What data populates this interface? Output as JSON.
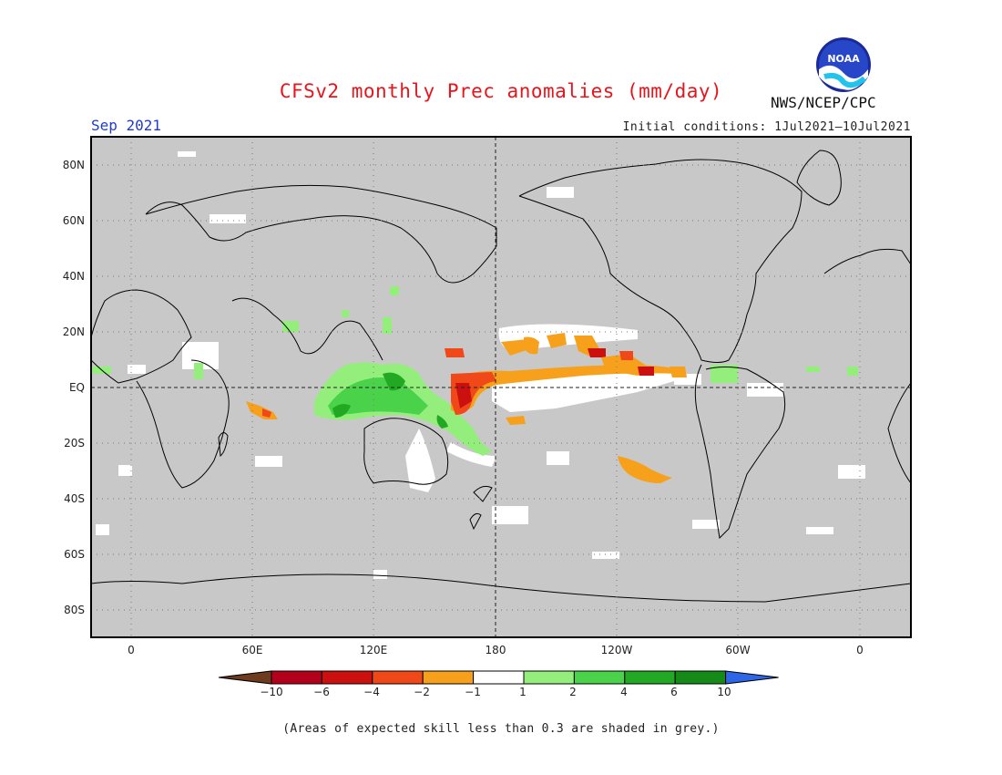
{
  "header": {
    "title": "CFSv2 monthly Prec anomalies (mm/day)",
    "month": "Sep 2021",
    "initial_conditions": "Initial conditions: 1Jul2021–10Jul2021",
    "agency": "NWS/NCEP/CPC",
    "logo_text": "NOAA"
  },
  "map": {
    "lat_labels": [
      "80N",
      "60N",
      "40N",
      "20N",
      "EQ",
      "20S",
      "40S",
      "60S",
      "80S"
    ],
    "lon_labels": [
      "0",
      "60E",
      "120E",
      "180",
      "120W",
      "60W",
      "0"
    ],
    "background_color": "#c8c8c8"
  },
  "colorbar": {
    "labels": [
      "−10",
      "−6",
      "−4",
      "−2",
      "−1",
      "1",
      "2",
      "4",
      "6",
      "10"
    ],
    "colors": [
      "#6e3b1f",
      "#b3001b",
      "#cc1010",
      "#f04818",
      "#f7a01c",
      "#ffffff",
      "#94ee7c",
      "#4ad24a",
      "#22a822",
      "#168a16",
      "#2e66e8"
    ]
  },
  "footnote": "(Areas of expected skill less than 0.3 are shaded in grey.)"
}
